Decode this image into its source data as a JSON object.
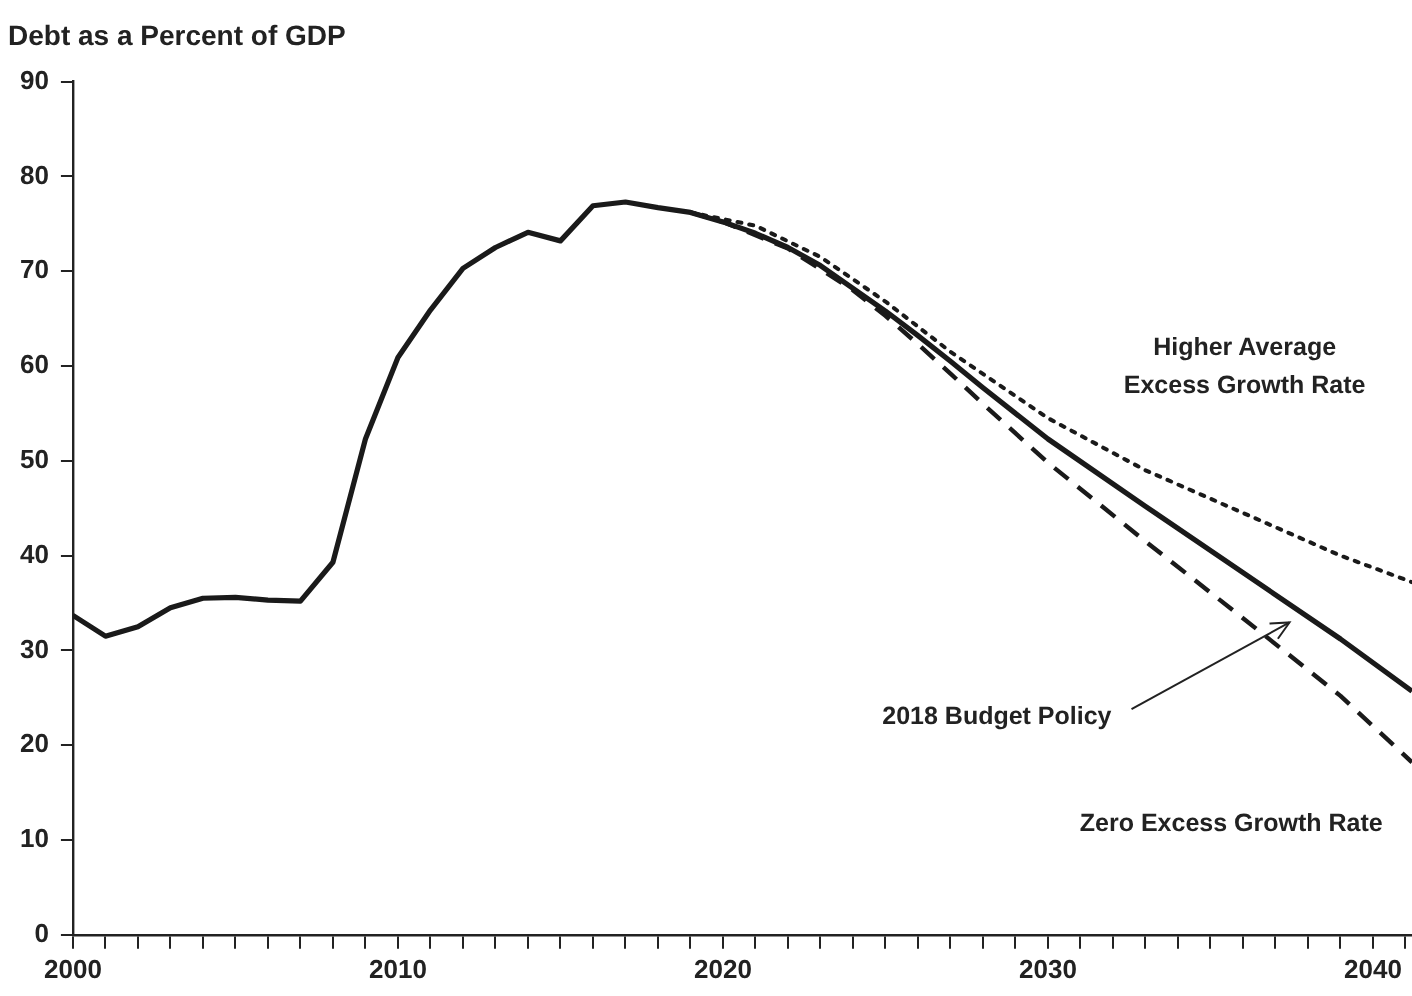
{
  "chart_data": {
    "type": "line",
    "title": "Debt as a Percent of GDP",
    "xlim": [
      2000,
      2041.2
    ],
    "xticks": [
      2000,
      {
        "value": 2001,
        "label": null
      },
      {
        "value": 2002,
        "label": null
      },
      {
        "value": 2003,
        "label": null
      },
      {
        "value": 2004,
        "label": null
      },
      {
        "value": 2005,
        "label": null
      },
      {
        "value": 2006,
        "label": null
      },
      {
        "value": 2007,
        "label": null
      },
      {
        "value": 2008,
        "label": null
      },
      {
        "value": 2009,
        "label": null
      },
      2010,
      {
        "value": 2011,
        "label": null
      },
      {
        "value": 2012,
        "label": null
      },
      {
        "value": 2013,
        "label": null
      },
      {
        "value": 2014,
        "label": null
      },
      {
        "value": 2015,
        "label": null
      },
      {
        "value": 2016,
        "label": null
      },
      {
        "value": 2017,
        "label": null
      },
      {
        "value": 2018,
        "label": null
      },
      {
        "value": 2019,
        "label": null
      },
      2020,
      {
        "value": 2021,
        "label": null
      },
      {
        "value": 2022,
        "label": null
      },
      {
        "value": 2023,
        "label": null
      },
      {
        "value": 2024,
        "label": null
      },
      {
        "value": 2025,
        "label": null
      },
      {
        "value": 2026,
        "label": null
      },
      {
        "value": 2027,
        "label": null
      },
      {
        "value": 2028,
        "label": null
      },
      {
        "value": 2029,
        "label": null
      },
      2030,
      {
        "value": 2031,
        "label": null
      },
      {
        "value": 2032,
        "label": null
      },
      {
        "value": 2033,
        "label": null
      },
      {
        "value": 2034,
        "label": null
      },
      {
        "value": 2035,
        "label": null
      },
      {
        "value": 2036,
        "label": null
      },
      {
        "value": 2037,
        "label": null
      },
      {
        "value": 2038,
        "label": null
      },
      {
        "value": 2039,
        "label": null
      },
      2040,
      {
        "value": 2041,
        "label": null
      }
    ],
    "ylim": [
      0,
      90
    ],
    "yticks": [
      0,
      10,
      20,
      30,
      40,
      50,
      60,
      70,
      80,
      90
    ],
    "grid": false,
    "legend": false,
    "marker": "none",
    "series": [
      {
        "name": "Higher Average Excess Growth Rate",
        "color": "#1a1a1a",
        "line_style": "dotted",
        "x": [
          2019,
          2021,
          2023,
          2025,
          2027,
          2030,
          2033,
          2036,
          2039,
          2041.2
        ],
        "values": [
          76.2,
          74.8,
          71.5,
          66.8,
          61.5,
          54.5,
          49,
          44.5,
          40,
          37.2
        ]
      },
      {
        "name": "2018 Budget Policy",
        "color": "#1a1a1a",
        "line_style": "solid",
        "x": [
          2000,
          2001,
          2002,
          2003,
          2004,
          2005,
          2006,
          2007,
          2008,
          2009,
          2010,
          2011,
          2012,
          2013,
          2014,
          2015,
          2016,
          2017,
          2018,
          2019,
          2020,
          2021,
          2022,
          2023,
          2024,
          2025,
          2026,
          2027,
          2028,
          2030,
          2033,
          2036,
          2039,
          2041.2
        ],
        "values": [
          33.7,
          31.5,
          32.5,
          34.5,
          35.5,
          35.6,
          35.3,
          35.2,
          39.3,
          52.3,
          60.9,
          65.9,
          70.3,
          72.5,
          74.1,
          73.2,
          76.9,
          77.3,
          76.7,
          76.2,
          75.2,
          74,
          72.5,
          70.6,
          68.2,
          65.8,
          63.2,
          60.5,
          57.7,
          52.3,
          45.2,
          38.2,
          31.2,
          25.7
        ]
      },
      {
        "name": "Zero Excess Growth Rate",
        "color": "#1a1a1a",
        "line_style": "dashed",
        "x": [
          2019,
          2020,
          2022,
          2024,
          2025,
          2026,
          2027,
          2028,
          2030,
          2033,
          2036,
          2039,
          2041.2
        ],
        "values": [
          76.2,
          75.2,
          72.4,
          68,
          65.3,
          62.3,
          59.2,
          56,
          49.8,
          41.5,
          33.4,
          25.2,
          18.2
        ]
      }
    ]
  }
}
